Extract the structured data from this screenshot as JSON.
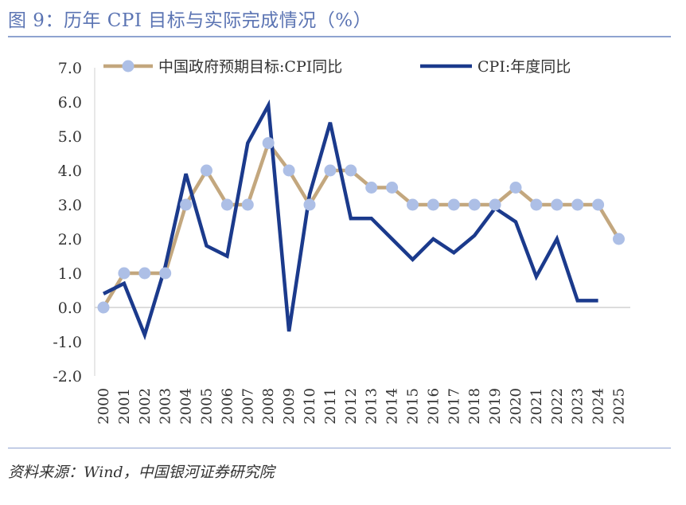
{
  "figure": {
    "title": "图 9：历年 CPI 目标与实际完成情况（%）",
    "source": "资料来源：Wind，中国银河证券研究院"
  },
  "colors": {
    "target_line": "#c3a77e",
    "target_marker": "#adbfe6",
    "actual_line": "#1b3a8c",
    "title": "#5b74b3",
    "rule": "#8fa3d0"
  },
  "chart_data": {
    "type": "line",
    "title": "",
    "xlabel": "",
    "ylabel": "",
    "ylim": [
      -2.0,
      7.0
    ],
    "yticks": [
      "-2.0",
      "-1.0",
      "0.0",
      "1.0",
      "2.0",
      "3.0",
      "4.0",
      "5.0",
      "6.0",
      "7.0"
    ],
    "legend_position": "top",
    "categories": [
      "2000",
      "2001",
      "2002",
      "2003",
      "2004",
      "2005",
      "2006",
      "2007",
      "2008",
      "2009",
      "2010",
      "2011",
      "2012",
      "2013",
      "2014",
      "2015",
      "2016",
      "2017",
      "2018",
      "2019",
      "2020",
      "2021",
      "2022",
      "2023",
      "2024",
      "2025"
    ],
    "series": [
      {
        "name": "中国政府预期目标:CPI同比",
        "style": "line-with-markers",
        "values": [
          0.0,
          1.0,
          1.0,
          1.0,
          3.0,
          4.0,
          3.0,
          3.0,
          4.8,
          4.0,
          3.0,
          4.0,
          4.0,
          3.5,
          3.5,
          3.0,
          3.0,
          3.0,
          3.0,
          3.0,
          3.5,
          3.0,
          3.0,
          3.0,
          3.0,
          2.0
        ]
      },
      {
        "name": "CPI:年度同比",
        "style": "line",
        "values": [
          0.4,
          0.7,
          -0.8,
          1.2,
          3.9,
          1.8,
          1.5,
          4.8,
          5.9,
          -0.7,
          3.3,
          5.4,
          2.6,
          2.6,
          2.0,
          1.4,
          2.0,
          1.6,
          2.1,
          2.9,
          2.5,
          0.9,
          2.0,
          0.2,
          0.2,
          null
        ]
      }
    ]
  }
}
